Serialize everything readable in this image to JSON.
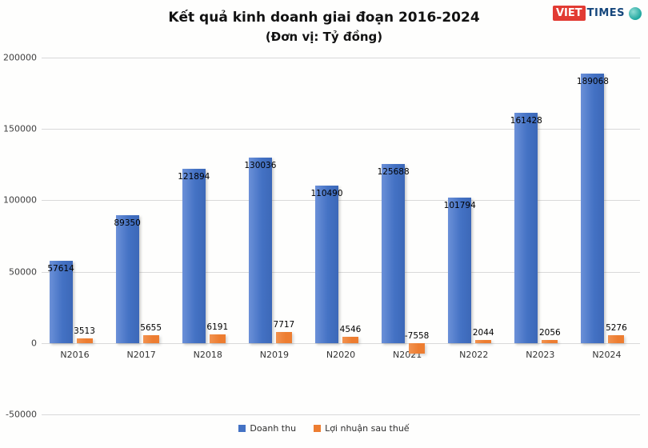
{
  "logo": {
    "viet": "VIET",
    "times": "TIMES"
  },
  "chart_data": {
    "type": "bar",
    "title": "Kết quả kinh doanh giai đoạn 2016-2024",
    "subtitle": "(Đơn vị: Tỷ đồng)",
    "categories": [
      "N2016",
      "N2017",
      "N2018",
      "N2019",
      "N2020",
      "N2021",
      "N2022",
      "N2023",
      "N2024"
    ],
    "series": [
      {
        "name": "Doanh thu",
        "color": "#4472c4",
        "values": [
          57614,
          89350,
          121894,
          130036,
          110490,
          125688,
          101794,
          161428,
          189068
        ]
      },
      {
        "name": "Lợi nhuận sau thuế",
        "color": "#ed7d31",
        "values": [
          3513,
          5655,
          6191,
          7717,
          4546,
          -7558,
          2044,
          2056,
          5276
        ]
      }
    ],
    "xlabel": "",
    "ylabel": "",
    "ylim": [
      -50000,
      200000
    ],
    "yticks": [
      200000,
      150000,
      100000,
      50000,
      0,
      -50000
    ],
    "grid": true,
    "legend_position": "bottom"
  }
}
